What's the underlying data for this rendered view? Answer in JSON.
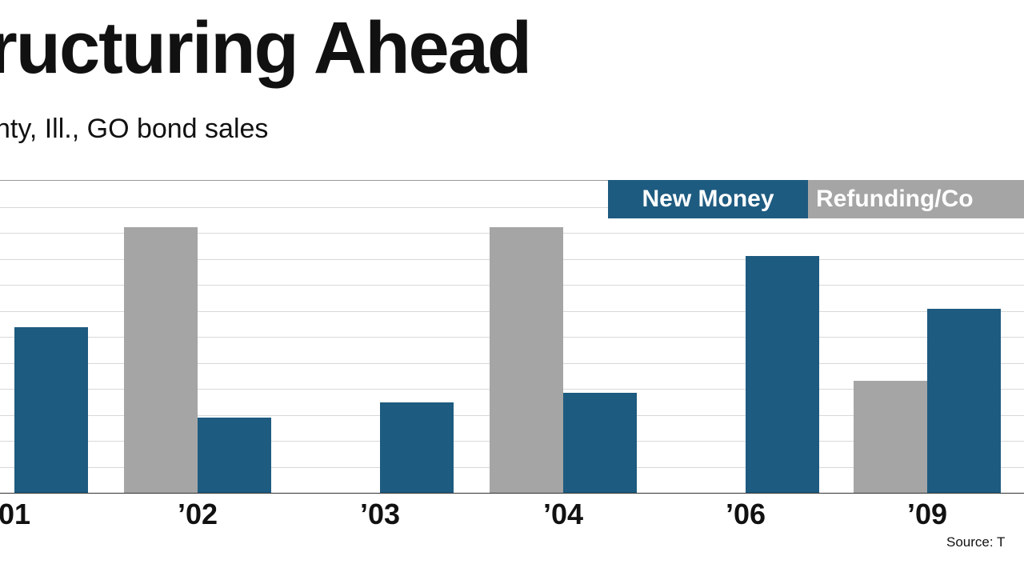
{
  "title": "ructuring Ahead",
  "subtitle": "nty, Ill., GO bond sales",
  "legend": {
    "new_money": "New Money",
    "refunding": "Refunding/Co"
  },
  "source": "Source: T",
  "colors": {
    "new_money": "#1e5b80",
    "refunding": "#a5a5a5",
    "gridline": "#d8d8d8"
  },
  "chart_data": {
    "type": "bar",
    "title": "ructuring Ahead",
    "subtitle": "nty, Ill., GO bond sales",
    "categories": [
      "01",
      "’02",
      "’03",
      "’04",
      "’06",
      "’09"
    ],
    "series": [
      {
        "name": "Refunding/Co",
        "color": "#a5a5a5",
        "values": [
          null,
          85,
          null,
          85,
          null,
          36
        ]
      },
      {
        "name": "New Money",
        "color": "#1e5b80",
        "values": [
          53,
          24,
          29,
          32,
          76,
          59
        ]
      }
    ],
    "xlabel": "",
    "ylabel": "",
    "ylim": [
      0,
      100
    ],
    "grid": true,
    "grid_divisions": 12,
    "legend_position": "top-right"
  }
}
